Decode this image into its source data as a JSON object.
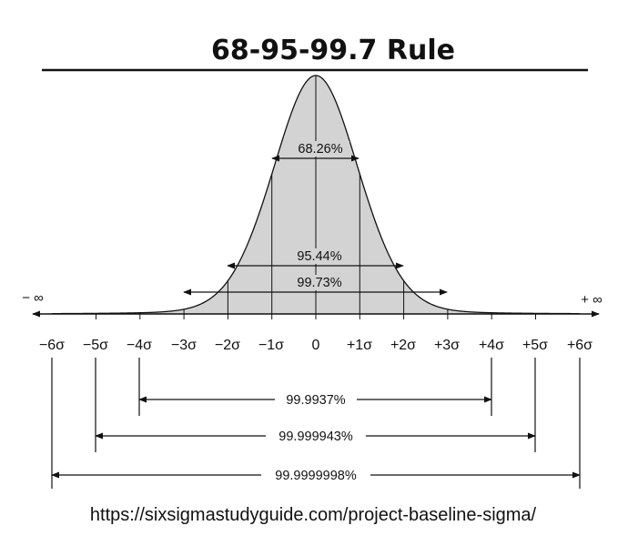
{
  "title": "68-95-99.7 Rule",
  "axis": {
    "left_label": "− ∞",
    "right_label": "+ ∞",
    "ticks": [
      "−6σ",
      "−5σ",
      "−4σ",
      "−3σ",
      "−2σ",
      "−1σ",
      "0",
      "+1σ",
      "+2σ",
      "+3σ",
      "+4σ",
      "+5σ",
      "+6σ"
    ]
  },
  "ranges": {
    "inner": [
      {
        "sigma": 1,
        "label": "68.26%"
      },
      {
        "sigma": 2,
        "label": "95.44%"
      },
      {
        "sigma": 3,
        "label": "99.73%"
      }
    ],
    "outer": [
      {
        "sigma": 4,
        "label": "99.9937%"
      },
      {
        "sigma": 5,
        "label": "99.999943%"
      },
      {
        "sigma": 6,
        "label": "99.9999998%"
      }
    ]
  },
  "source": "https://sixsigmastudyguide.com/project-baseline-sigma/",
  "colors": {
    "curve_fill": "#d3d3d3",
    "ink": "#111111"
  }
}
